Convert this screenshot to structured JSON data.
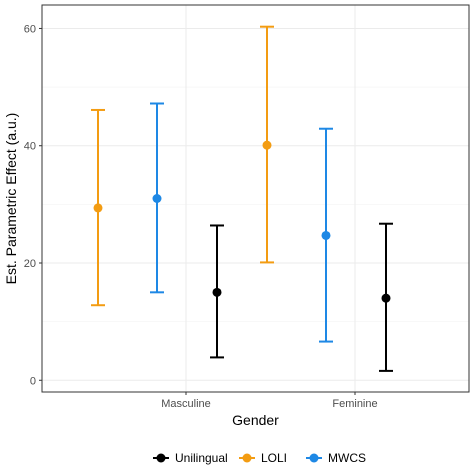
{
  "chart_data": {
    "type": "scatter",
    "subtype": "point-with-errorbars",
    "xlabel": "Gender",
    "ylabel": "Est. Parametric Effect (a.u.)",
    "categories": [
      "Masculine",
      "Feminine"
    ],
    "ylim": [
      -2,
      64
    ],
    "yticks": [
      0,
      20,
      40,
      60
    ],
    "grid": true,
    "legend_position": "bottom",
    "colors": {
      "Unilingual": "#000000",
      "LOLI": "#f39c12",
      "MWCS": "#1e88e5",
      "panel_border": "#333333",
      "grid": "#ebebeb"
    },
    "series": [
      {
        "name": "LOLI",
        "values": [
          29.4,
          40.1
        ],
        "lower": [
          12.8,
          20.1
        ],
        "upper": [
          46.1,
          60.3
        ]
      },
      {
        "name": "MWCS",
        "values": [
          31.0,
          24.7
        ],
        "lower": [
          15.0,
          6.6
        ],
        "upper": [
          47.2,
          42.9
        ]
      },
      {
        "name": "Unilingual",
        "values": [
          15.0,
          14.0
        ],
        "lower": [
          3.9,
          1.6
        ],
        "upper": [
          26.4,
          26.7
        ]
      }
    ],
    "legend_order": [
      "Unilingual",
      "LOLI",
      "MWCS"
    ]
  }
}
